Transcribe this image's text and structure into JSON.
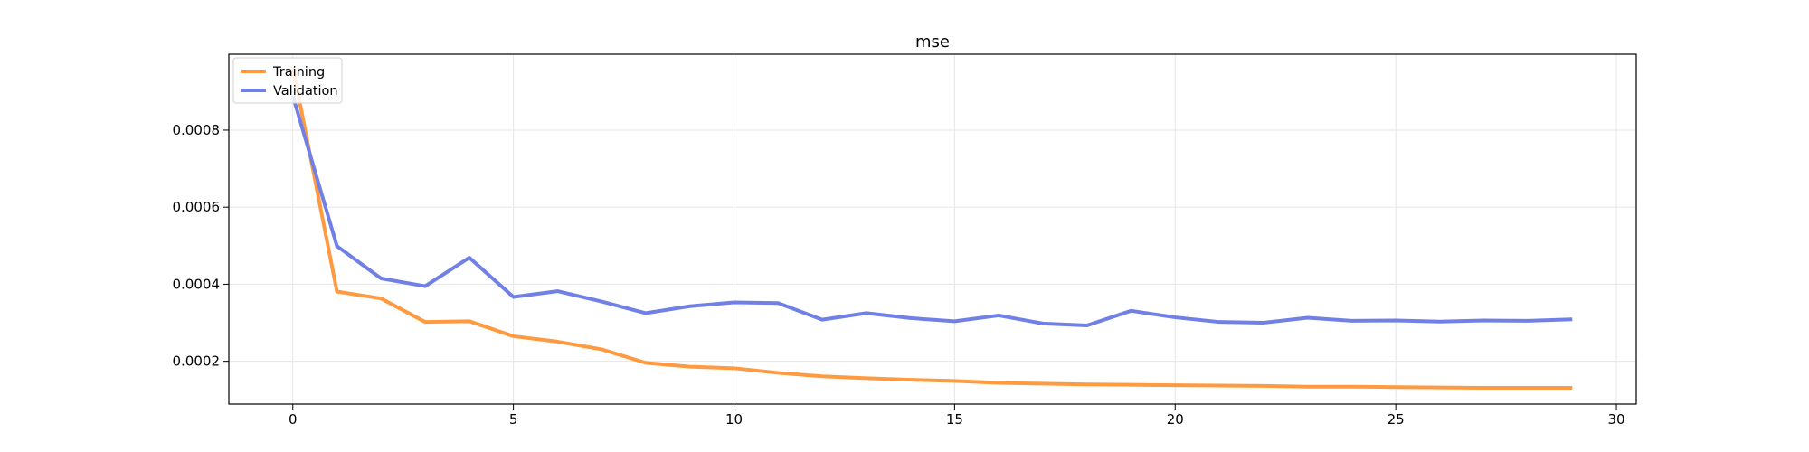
{
  "chart_data": {
    "type": "line",
    "title": "mse",
    "xlabel": "",
    "ylabel": "",
    "xlim": [
      -1.45,
      30.45
    ],
    "ylim": [
      8.89e-05,
      0.000997
    ],
    "x_ticks": [
      0,
      5,
      10,
      15,
      20,
      25,
      30
    ],
    "x_tick_labels": [
      "0",
      "5",
      "10",
      "15",
      "20",
      "25",
      "30"
    ],
    "y_ticks": [
      0.0002,
      0.0004,
      0.0006,
      0.0008
    ],
    "y_tick_labels": [
      "0.0002",
      "0.0004",
      "0.0006",
      "0.0008"
    ],
    "grid": true,
    "legend_position": "top-left",
    "x": [
      0,
      1,
      2,
      3,
      4,
      5,
      6,
      7,
      8,
      9,
      10,
      11,
      12,
      13,
      14,
      15,
      16,
      17,
      18,
      19,
      20,
      21,
      22,
      23,
      24,
      25,
      26,
      27,
      28,
      29
    ],
    "series": [
      {
        "name": "Training",
        "color": "#ff9a40",
        "values": [
          0.000964,
          0.000381,
          0.000363,
          0.000302,
          0.000304,
          0.000265,
          0.000251,
          0.000231,
          0.000196,
          0.000186,
          0.000182,
          0.00017,
          0.000161,
          0.000156,
          0.000152,
          0.000149,
          0.000144,
          0.000142,
          0.00014,
          0.000139,
          0.000138,
          0.000137,
          0.000136,
          0.000134,
          0.000134,
          0.000133,
          0.000132,
          0.000131,
          0.000131,
          0.000131
        ]
      },
      {
        "name": "Validation",
        "color": "#7080e6",
        "values": [
          0.000889,
          0.000499,
          0.000415,
          0.000395,
          0.000469,
          0.000367,
          0.000382,
          0.000355,
          0.000325,
          0.000343,
          0.000353,
          0.000351,
          0.000308,
          0.000325,
          0.000312,
          0.000304,
          0.000319,
          0.000298,
          0.000293,
          0.000331,
          0.000314,
          0.000302,
          0.0003,
          0.000313,
          0.000305,
          0.000306,
          0.000303,
          0.000306,
          0.000305,
          0.000309
        ]
      }
    ]
  }
}
